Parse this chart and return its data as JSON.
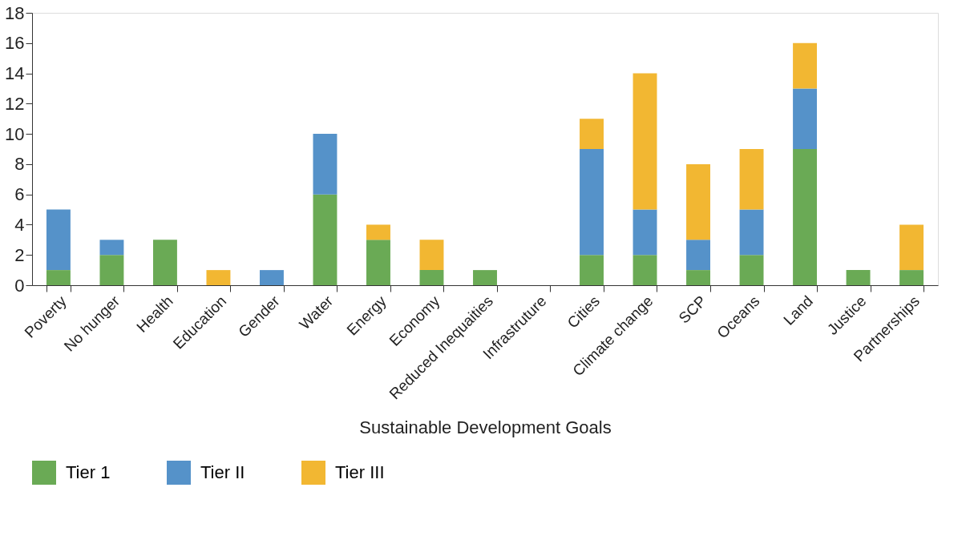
{
  "chart_data": {
    "type": "bar",
    "stacked": true,
    "xlabel": "Sustainable Development Goals",
    "categories": [
      "Poverty",
      "No hunger",
      "Health",
      "Education",
      "Gender",
      "Water",
      "Energy",
      "Economy",
      "Reduced Inequaities",
      "Infrastruture",
      "Cities",
      "Climate change",
      "SCP",
      "Oceans",
      "Land",
      "Justice",
      "Partnerships"
    ],
    "series": [
      {
        "name": "Tier 1",
        "color": "#6aaa55",
        "values": [
          1,
          2,
          3,
          null,
          null,
          6,
          3,
          1,
          1,
          null,
          2,
          2,
          1,
          2,
          9,
          1,
          1
        ]
      },
      {
        "name": "Tier II",
        "color": "#5592c9",
        "values": [
          4,
          1,
          null,
          null,
          1,
          4,
          null,
          null,
          null,
          null,
          7,
          3,
          2,
          3,
          4,
          null,
          null
        ]
      },
      {
        "name": "Tier III",
        "color": "#f2b732",
        "values": [
          null,
          null,
          null,
          1,
          null,
          null,
          1,
          2,
          null,
          null,
          2,
          9,
          5,
          4,
          3,
          null,
          3
        ]
      }
    ],
    "ylim": [
      0,
      18
    ],
    "yticks": [
      0,
      2,
      4,
      6,
      8,
      10,
      12,
      14,
      16,
      18
    ],
    "grid": false,
    "legend": "bottom"
  }
}
